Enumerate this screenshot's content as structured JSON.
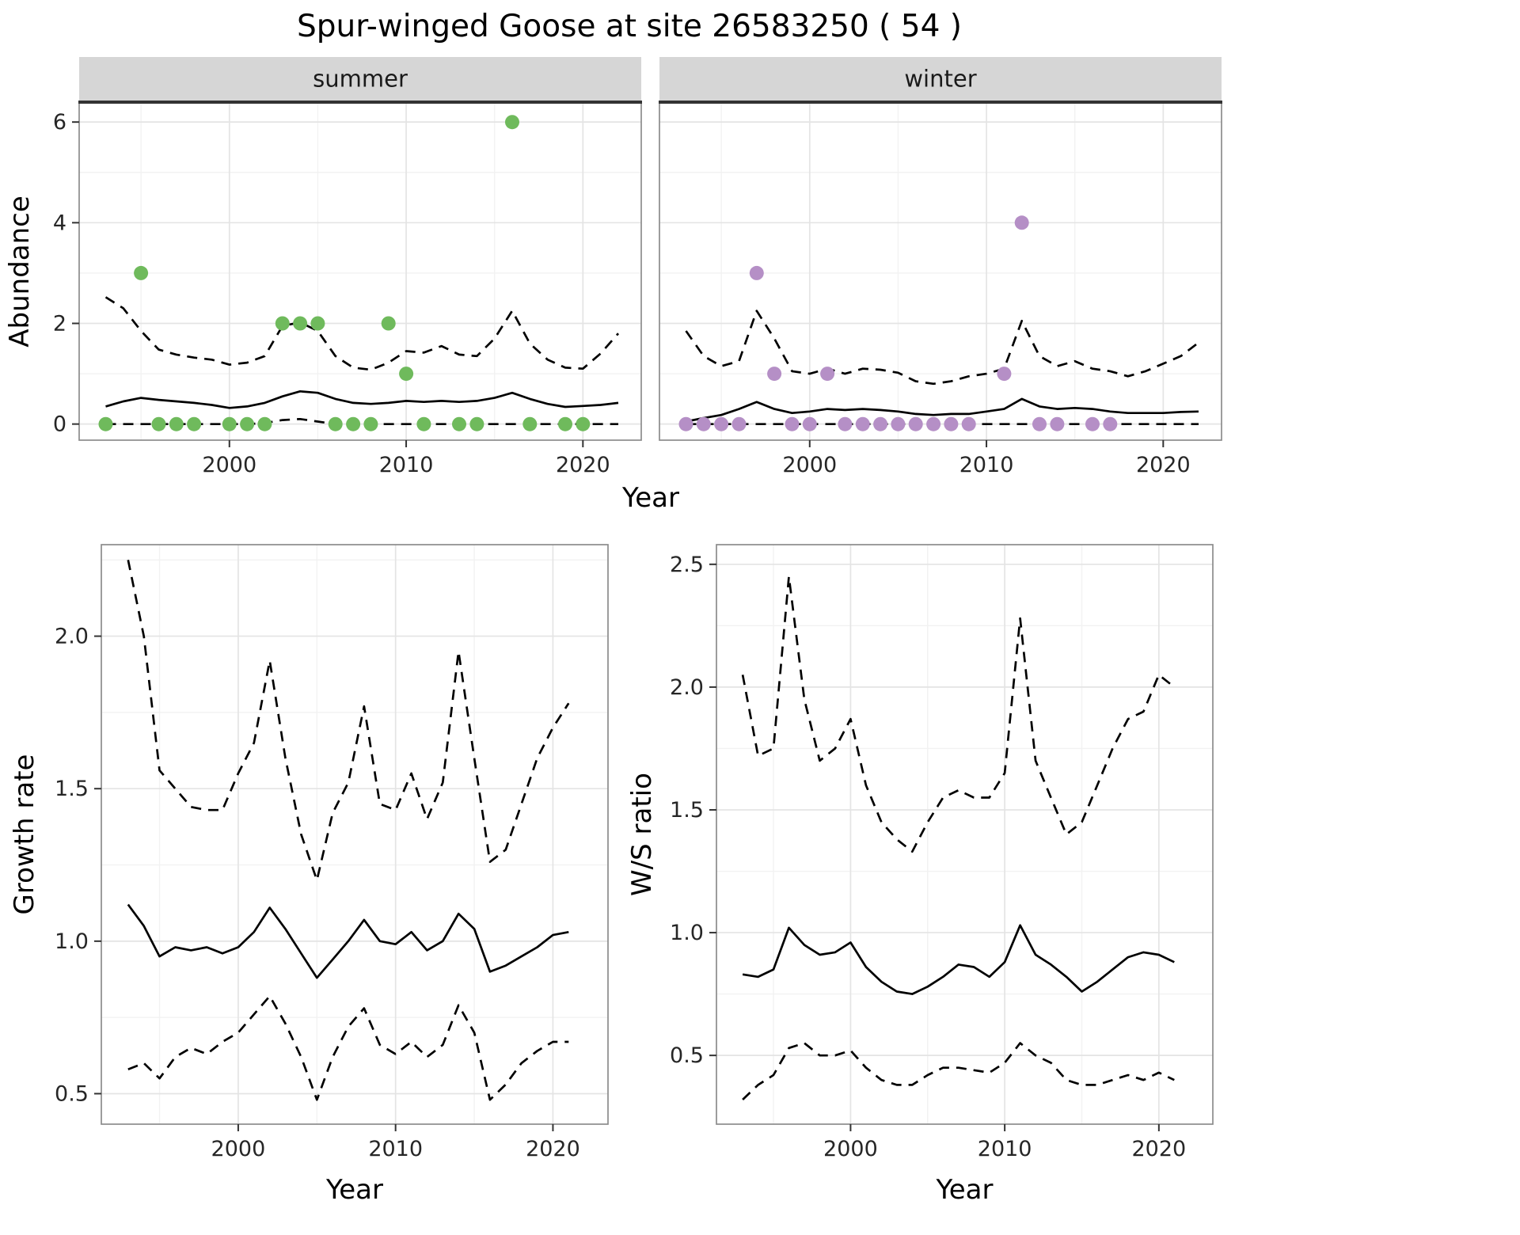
{
  "title": "Spur-winged Goose at site 26583250 ( 54 )",
  "colors": {
    "summer_point": "#6fba5c",
    "winter_point": "#b58fc6",
    "line": "#000000",
    "grid_major": "#e4e4e4",
    "grid_minor": "#f2f2f2",
    "strip_bg": "#d6d6d6",
    "strip_underline": "#333333",
    "panel_border": "#8c8c8c"
  },
  "chart_data": [
    {
      "id": "summer",
      "type": "line",
      "facet": "summer",
      "xlabel": "Year",
      "ylabel": "Abundance",
      "xlim": [
        1991.5,
        2023.3
      ],
      "ylim": [
        -0.32,
        6.38
      ],
      "xticks": [
        2000,
        2010,
        2020
      ],
      "xtick_labels": [
        "2000",
        "2010",
        "2020"
      ],
      "xminor": [
        1995,
        2005,
        2015
      ],
      "yticks": [
        0,
        2,
        4,
        6
      ],
      "ytick_labels": [
        "0",
        "2",
        "4",
        "6"
      ],
      "yminor": [
        1,
        3,
        5
      ],
      "x": [
        1993,
        1994,
        1995,
        1996,
        1997,
        1998,
        1999,
        2000,
        2001,
        2002,
        2003,
        2004,
        2005,
        2006,
        2007,
        2008,
        2009,
        2010,
        2011,
        2012,
        2013,
        2014,
        2015,
        2016,
        2017,
        2018,
        2019,
        2020,
        2021,
        2022
      ],
      "series": [
        {
          "name": "mean",
          "style": "solid",
          "values": [
            0.35,
            0.45,
            0.52,
            0.48,
            0.45,
            0.42,
            0.38,
            0.32,
            0.35,
            0.42,
            0.55,
            0.65,
            0.62,
            0.5,
            0.42,
            0.4,
            0.42,
            0.46,
            0.44,
            0.46,
            0.44,
            0.46,
            0.52,
            0.62,
            0.5,
            0.4,
            0.34,
            0.36,
            0.38,
            0.42
          ]
        },
        {
          "name": "upper_ci",
          "style": "dashed",
          "values": [
            2.52,
            2.3,
            1.85,
            1.48,
            1.38,
            1.32,
            1.28,
            1.18,
            1.22,
            1.35,
            1.95,
            2.02,
            1.85,
            1.35,
            1.12,
            1.08,
            1.22,
            1.45,
            1.42,
            1.55,
            1.38,
            1.35,
            1.7,
            2.25,
            1.6,
            1.28,
            1.12,
            1.1,
            1.4,
            1.8
          ]
        },
        {
          "name": "lower_ci",
          "style": "dashed",
          "values": [
            0,
            0,
            0,
            0,
            0,
            0,
            0,
            0,
            0,
            0.02,
            0.08,
            0.1,
            0.05,
            0,
            0,
            0,
            0,
            0,
            0,
            0,
            0,
            0,
            0,
            0,
            0,
            0,
            0,
            0,
            0,
            0
          ]
        }
      ],
      "points": {
        "x": [
          1993,
          1995,
          1996,
          1997,
          1998,
          2000,
          2001,
          2002,
          2003,
          2004,
          2005,
          2006,
          2007,
          2008,
          2009,
          2010,
          2011,
          2013,
          2014,
          2016,
          2017,
          2019,
          2020
        ],
        "y": [
          0,
          3,
          0,
          0,
          0,
          0,
          0,
          0,
          2,
          2,
          2,
          0,
          0,
          0,
          2,
          1,
          0,
          0,
          0,
          6,
          0,
          0,
          0
        ]
      }
    },
    {
      "id": "winter",
      "type": "line",
      "facet": "winter",
      "xlabel": "Year",
      "ylabel": null,
      "xlim": [
        1991.5,
        2023.3
      ],
      "ylim": [
        -0.32,
        6.38
      ],
      "xticks": [
        2000,
        2010,
        2020
      ],
      "xtick_labels": [
        "2000",
        "2010",
        "2020"
      ],
      "xminor": [
        1995,
        2005,
        2015
      ],
      "yticks": [
        0,
        2,
        4,
        6
      ],
      "ytick_labels": [
        "0",
        "2",
        "4",
        "6"
      ],
      "yminor": [
        1,
        3,
        5
      ],
      "x": [
        1993,
        1994,
        1995,
        1996,
        1997,
        1998,
        1999,
        2000,
        2001,
        2002,
        2003,
        2004,
        2005,
        2006,
        2007,
        2008,
        2009,
        2010,
        2011,
        2012,
        2013,
        2014,
        2015,
        2016,
        2017,
        2018,
        2019,
        2020,
        2021,
        2022
      ],
      "series": [
        {
          "name": "mean",
          "style": "solid",
          "values": [
            0.05,
            0.12,
            0.18,
            0.3,
            0.44,
            0.3,
            0.22,
            0.25,
            0.3,
            0.28,
            0.3,
            0.28,
            0.25,
            0.2,
            0.18,
            0.2,
            0.2,
            0.25,
            0.3,
            0.5,
            0.35,
            0.3,
            0.32,
            0.3,
            0.25,
            0.22,
            0.22,
            0.22,
            0.24,
            0.25
          ]
        },
        {
          "name": "upper_ci",
          "style": "dashed",
          "values": [
            1.85,
            1.35,
            1.15,
            1.25,
            2.25,
            1.7,
            1.05,
            1.0,
            1.1,
            1.0,
            1.1,
            1.08,
            1.02,
            0.85,
            0.8,
            0.85,
            0.95,
            1.0,
            1.1,
            2.05,
            1.35,
            1.15,
            1.25,
            1.1,
            1.05,
            0.95,
            1.05,
            1.2,
            1.35,
            1.62
          ]
        },
        {
          "name": "lower_ci",
          "style": "dashed",
          "values": [
            0,
            0,
            0,
            0,
            0,
            0,
            0,
            0,
            0,
            0,
            0,
            0,
            0,
            0,
            0,
            0,
            0,
            0,
            0,
            0,
            0,
            0,
            0,
            0,
            0,
            0,
            0,
            0,
            0,
            0
          ]
        }
      ],
      "points": {
        "x": [
          1993,
          1994,
          1995,
          1996,
          1997,
          1998,
          1999,
          2000,
          2001,
          2002,
          2003,
          2004,
          2005,
          2006,
          2007,
          2008,
          2009,
          2011,
          2012,
          2013,
          2014,
          2016,
          2017
        ],
        "y": [
          0,
          0,
          0,
          0,
          3,
          1,
          0,
          0,
          1,
          0,
          0,
          0,
          0,
          0,
          0,
          0,
          0,
          1,
          4,
          0,
          0,
          0,
          0
        ]
      }
    },
    {
      "id": "growth",
      "type": "line",
      "facet": null,
      "xlabel": "Year",
      "ylabel": "Growth rate",
      "xlim": [
        1991.3,
        2023.5
      ],
      "ylim": [
        0.4,
        2.3
      ],
      "xticks": [
        2000,
        2010,
        2020
      ],
      "xtick_labels": [
        "2000",
        "2010",
        "2020"
      ],
      "xminor": [
        1995,
        2005,
        2015
      ],
      "yticks": [
        0.5,
        1.0,
        1.5,
        2.0
      ],
      "ytick_labels": [
        "0.5",
        "1.0",
        "1.5",
        "2.0"
      ],
      "yminor": [
        0.75,
        1.25,
        1.75,
        2.25
      ],
      "x": [
        1993,
        1994,
        1995,
        1996,
        1997,
        1998,
        1999,
        2000,
        2001,
        2002,
        2003,
        2004,
        2005,
        2006,
        2007,
        2008,
        2009,
        2010,
        2011,
        2012,
        2013,
        2014,
        2015,
        2016,
        2017,
        2018,
        2019,
        2020,
        2021
      ],
      "series": [
        {
          "name": "mean",
          "style": "solid",
          "values": [
            1.12,
            1.05,
            0.95,
            0.98,
            0.97,
            0.98,
            0.96,
            0.98,
            1.03,
            1.11,
            1.04,
            0.96,
            0.88,
            0.94,
            1.0,
            1.07,
            1.0,
            0.99,
            1.03,
            0.97,
            1.0,
            1.09,
            1.04,
            0.9,
            0.92,
            0.95,
            0.98,
            1.02,
            1.03
          ]
        },
        {
          "name": "upper_ci",
          "style": "dashed",
          "values": [
            2.25,
            2.0,
            1.56,
            1.5,
            1.44,
            1.43,
            1.43,
            1.55,
            1.65,
            1.92,
            1.6,
            1.35,
            1.2,
            1.42,
            1.52,
            1.77,
            1.45,
            1.43,
            1.55,
            1.4,
            1.52,
            1.95,
            1.6,
            1.26,
            1.3,
            1.45,
            1.6,
            1.7,
            1.78
          ]
        },
        {
          "name": "lower_ci",
          "style": "dashed",
          "values": [
            0.58,
            0.6,
            0.55,
            0.62,
            0.65,
            0.63,
            0.67,
            0.7,
            0.76,
            0.82,
            0.73,
            0.62,
            0.48,
            0.62,
            0.72,
            0.78,
            0.66,
            0.63,
            0.67,
            0.62,
            0.66,
            0.79,
            0.7,
            0.48,
            0.53,
            0.6,
            0.64,
            0.67,
            0.67
          ]
        }
      ],
      "points": null
    },
    {
      "id": "ws",
      "type": "line",
      "facet": null,
      "xlabel": "Year",
      "ylabel": "W/S ratio",
      "xlim": [
        1991.3,
        2023.5
      ],
      "ylim": [
        0.22,
        2.58
      ],
      "xticks": [
        2000,
        2010,
        2020
      ],
      "xtick_labels": [
        "2000",
        "2010",
        "2020"
      ],
      "xminor": [
        1995,
        2005,
        2015
      ],
      "yticks": [
        0.5,
        1.0,
        1.5,
        2.0,
        2.5
      ],
      "ytick_labels": [
        "0.5",
        "1.0",
        "1.5",
        "2.0",
        "2.5"
      ],
      "yminor": [
        0.75,
        1.25,
        1.75,
        2.25
      ],
      "x": [
        1993,
        1994,
        1995,
        1996,
        1997,
        1998,
        1999,
        2000,
        2001,
        2002,
        2003,
        2004,
        2005,
        2006,
        2007,
        2008,
        2009,
        2010,
        2011,
        2012,
        2013,
        2014,
        2015,
        2016,
        2017,
        2018,
        2019,
        2020,
        2021
      ],
      "series": [
        {
          "name": "mean",
          "style": "solid",
          "values": [
            0.83,
            0.82,
            0.85,
            1.02,
            0.95,
            0.91,
            0.92,
            0.96,
            0.86,
            0.8,
            0.76,
            0.75,
            0.78,
            0.82,
            0.87,
            0.86,
            0.82,
            0.88,
            1.03,
            0.91,
            0.87,
            0.82,
            0.76,
            0.8,
            0.85,
            0.9,
            0.92,
            0.91,
            0.88
          ]
        },
        {
          "name": "upper_ci",
          "style": "dashed",
          "values": [
            2.05,
            1.72,
            1.75,
            2.45,
            1.95,
            1.7,
            1.75,
            1.87,
            1.6,
            1.45,
            1.38,
            1.33,
            1.45,
            1.55,
            1.58,
            1.55,
            1.55,
            1.65,
            2.28,
            1.7,
            1.55,
            1.4,
            1.45,
            1.6,
            1.75,
            1.87,
            1.9,
            2.05,
            2.0
          ]
        },
        {
          "name": "lower_ci",
          "style": "dashed",
          "values": [
            0.32,
            0.38,
            0.42,
            0.53,
            0.55,
            0.5,
            0.5,
            0.52,
            0.45,
            0.4,
            0.38,
            0.38,
            0.42,
            0.45,
            0.45,
            0.44,
            0.43,
            0.47,
            0.55,
            0.5,
            0.47,
            0.4,
            0.38,
            0.38,
            0.4,
            0.42,
            0.4,
            0.43,
            0.4
          ]
        }
      ],
      "points": null
    }
  ]
}
